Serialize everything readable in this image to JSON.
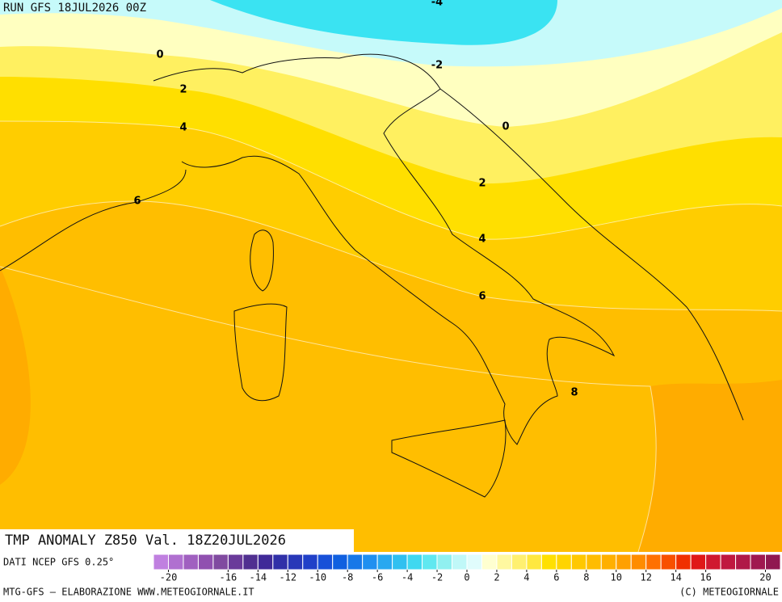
{
  "header": "RUN GFS 18JUL2026 00Z",
  "map": {
    "contour_labels": [
      -4,
      -2,
      0,
      0,
      2,
      2,
      4,
      4,
      6,
      6,
      8
    ]
  },
  "title": "TMP ANOMALY Z850 Val. 18Z20JUL2026",
  "source": "DATI NCEP GFS 0.25°",
  "colorbar": {
    "lim": [
      -21,
      21
    ],
    "ticks": [
      -20,
      -16,
      -14,
      -12,
      -10,
      -8,
      -6,
      -4,
      -2,
      0,
      2,
      4,
      6,
      8,
      10,
      12,
      14,
      16,
      20
    ],
    "colors": [
      "#c080e0",
      "#b070d0",
      "#a060c0",
      "#9050b0",
      "#804aa0",
      "#6a3a9a",
      "#503090",
      "#402a98",
      "#3030a8",
      "#2838b8",
      "#2040c8",
      "#1850d8",
      "#1060e0",
      "#1878e8",
      "#2090f0",
      "#28a8f0",
      "#30c0f0",
      "#40d8f0",
      "#60e8f0",
      "#90f0f0",
      "#c0f8f8",
      "#e0fcfc",
      "#ffffd0",
      "#fff8a0",
      "#fff070",
      "#ffe840",
      "#ffe000",
      "#ffd400",
      "#ffc800",
      "#ffbc00",
      "#ffb000",
      "#ffa000",
      "#ff8c00",
      "#ff7000",
      "#f85000",
      "#f03000",
      "#e01818",
      "#d01830",
      "#c01840",
      "#b01848",
      "#a01850",
      "#901850"
    ]
  },
  "footer": {
    "left": "MTG-GFS — ELABORAZIONE WWW.METEOGIORNALE.IT",
    "right": "(C) METEOGIORNALE"
  }
}
